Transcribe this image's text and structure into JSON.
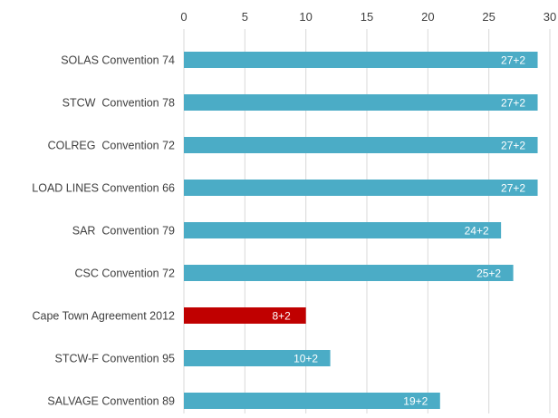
{
  "chart_data": {
    "type": "bar",
    "orientation": "horizontal",
    "categories": [
      "SOLAS Convention 74",
      "STCW  Convention 78",
      "COLREG  Convention 72",
      "LOAD LINES Convention 66",
      "SAR  Convention 79",
      "CSC Convention 72",
      "Cape Town Agreement 2012",
      "STCW-F Convention 95",
      "SALVAGE Convention 89"
    ],
    "values": [
      29,
      29,
      29,
      29,
      26,
      27,
      10,
      12,
      21
    ],
    "data_labels": [
      "27+2",
      "27+2",
      "27+2",
      "27+2",
      "24+2",
      "25+2",
      "8+2",
      "10+2",
      "19+2"
    ],
    "bar_colors": [
      "#4bacc6",
      "#4bacc6",
      "#4bacc6",
      "#4bacc6",
      "#4bacc6",
      "#4bacc6",
      "#c00000",
      "#4bacc6",
      "#4bacc6"
    ],
    "xlim": [
      0,
      30
    ],
    "x_ticks": [
      0,
      5,
      10,
      15,
      20,
      25,
      30
    ],
    "axis_position": "top",
    "grid": true,
    "title": "",
    "xlabel": "",
    "ylabel": ""
  }
}
